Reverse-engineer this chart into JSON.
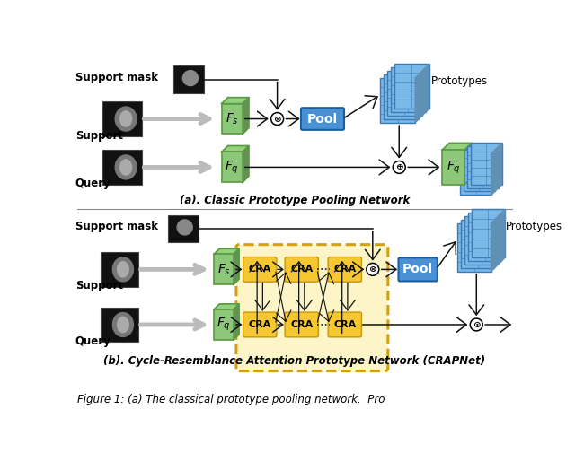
{
  "fig_width": 6.4,
  "fig_height": 5.14,
  "dpi": 100,
  "bg_color": "#ffffff",
  "green_color": "#8dc87a",
  "green_edge": "#5a9a40",
  "green_dark": "#6aab52",
  "blue_pool_color": "#4a90d4",
  "blue_pool_edge": "#1a5fa0",
  "cra_color": "#f5c832",
  "cra_edge": "#c8960a",
  "proto_color": "#7ab8e8",
  "proto_edge": "#3a7ab8",
  "proto_dark": "#5a9ad0",
  "dashed_fill": "#fdf5c8",
  "dashed_edge": "#d4a010",
  "arrow_color": "#111111",
  "gray_arrow": "#aaaaaa",
  "title_a": "(a). Classic Prototype Pooling Network",
  "title_b": "(b). Cycle-Resemblance Attention Prototype Network (CRAPNet)",
  "caption": "Figure 1: (a) The classical prototype pooling network.  Pro",
  "lbl_smask_a": "Support mask",
  "lbl_sup_a": "Support",
  "lbl_qry_a": "Query",
  "lbl_smask_b": "Support mask",
  "lbl_sup_b": "Support",
  "lbl_qry_b": "Query",
  "lbl_proto_a": "Prototypes",
  "lbl_proto_b": "Prototypes"
}
